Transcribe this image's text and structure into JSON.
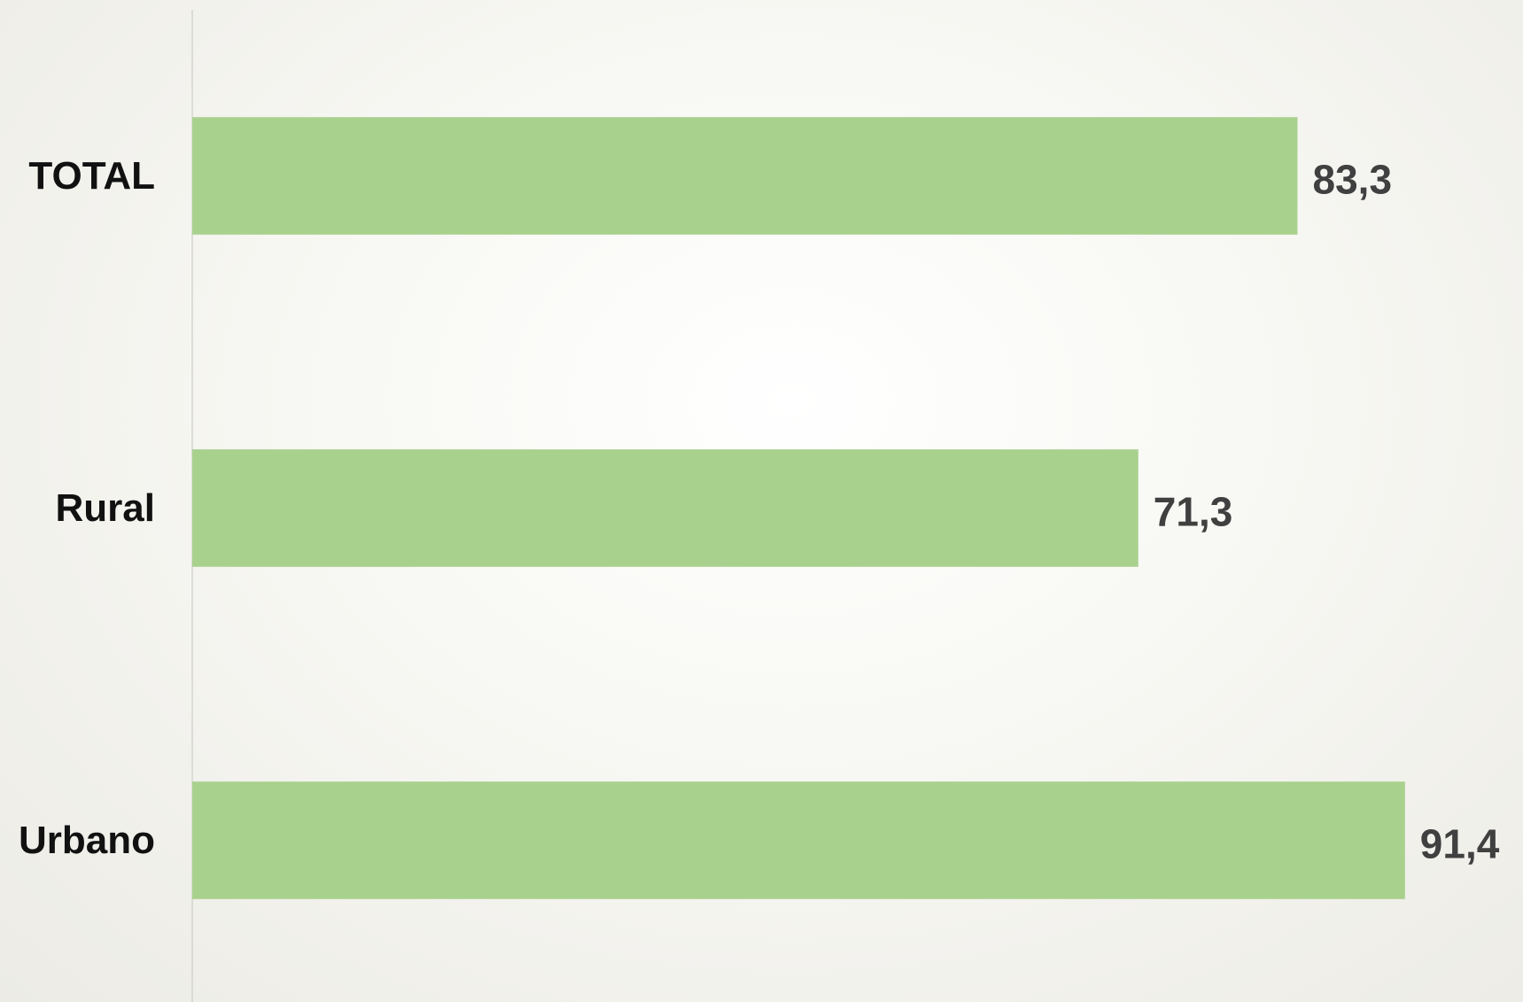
{
  "chart_data": {
    "type": "bar",
    "orientation": "horizontal",
    "categories": [
      "TOTAL",
      "Rural",
      "Urbano"
    ],
    "values": [
      83.3,
      71.3,
      91.4
    ],
    "value_labels": [
      "83,3",
      "71,3",
      "91,4"
    ],
    "color": "#a9d18e",
    "xlim": [
      0,
      100
    ]
  }
}
